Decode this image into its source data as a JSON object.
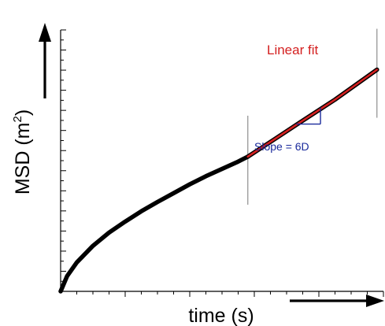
{
  "chart_data": {
    "type": "line",
    "xlabel": "time (s)",
    "ylabel_main": "MSD (m",
    "ylabel_sup": "2",
    "ylabel_tail": ")",
    "xlim": [
      0,
      10
    ],
    "ylim": [
      0,
      10
    ],
    "x_minor_ticks": 20,
    "y_minor_ticks": 26,
    "grid": false,
    "series": [
      {
        "color": "#000000",
        "x": [
          0.0,
          0.2,
          0.5,
          1.0,
          1.5,
          2.0,
          2.5,
          3.0,
          3.5,
          4.0,
          4.5,
          5.0,
          5.5,
          5.8
        ],
        "y": [
          0.0,
          0.62,
          1.18,
          1.86,
          2.4,
          2.85,
          3.27,
          3.65,
          4.01,
          4.37,
          4.7,
          5.0,
          5.3,
          5.5
        ]
      },
      {
        "name": "Linear fit",
        "color": "#d42020",
        "x": [
          5.8,
          6.6,
          7.5,
          8.5,
          9.8
        ],
        "y": [
          5.5,
          6.19,
          6.97,
          7.83,
          9.05
        ]
      }
    ],
    "annotations": {
      "fit_label": "Linear fit",
      "fit_label_color": "#d42020",
      "slope_label": "Slope = 6D",
      "slope_label_color": "#1a2a9c",
      "slope_triangle": {
        "x0": 7.3,
        "x1": 8.05,
        "color": "#1a2a9c"
      },
      "fit_range_markers_x": [
        5.8,
        9.8
      ]
    },
    "decorations": {
      "x_arrow": true,
      "y_arrow": true
    }
  }
}
